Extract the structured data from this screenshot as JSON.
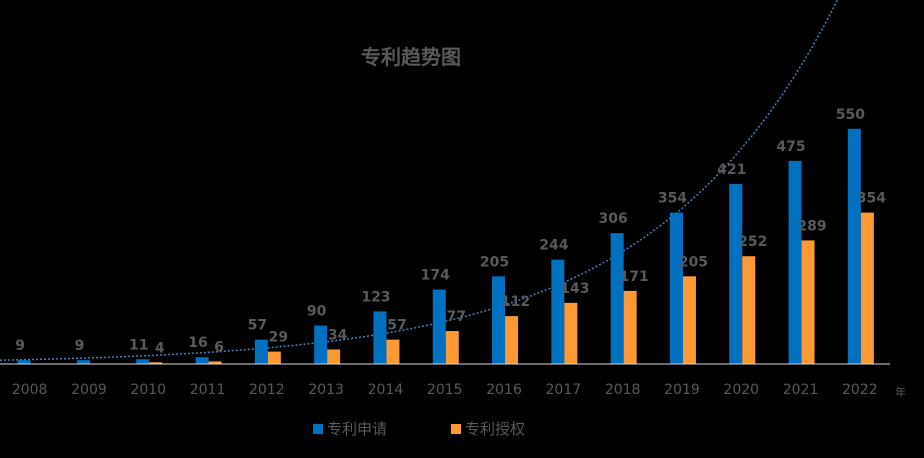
{
  "chart_data": {
    "type": "bar",
    "title": "专利趋势图",
    "x_unit": "年",
    "categories": [
      "2008",
      "2009",
      "2010",
      "2011",
      "2012",
      "2013",
      "2014",
      "2015",
      "2016",
      "2017",
      "2018",
      "2019",
      "2020",
      "2021",
      "2022"
    ],
    "series": [
      {
        "name": "专利申请",
        "color": "#0070C0",
        "values": [
          9,
          9,
          11,
          16,
          57,
          90,
          123,
          174,
          205,
          244,
          306,
          354,
          421,
          475,
          550
        ]
      },
      {
        "name": "专利授权",
        "color": "#FF9933",
        "values": [
          0,
          0,
          4,
          6,
          29,
          34,
          57,
          77,
          112,
          143,
          171,
          205,
          252,
          289,
          354
        ]
      }
    ],
    "trendline": {
      "type": "exponential",
      "series": "专利申请",
      "color": "#4A7EBB",
      "style": "dotted"
    },
    "ylim": [
      0,
      650
    ],
    "grid": false,
    "legend_position": "bottom"
  }
}
